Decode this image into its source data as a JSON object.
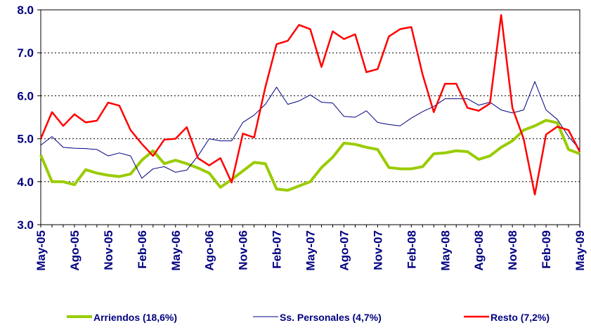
{
  "chart_data": {
    "type": "line",
    "categories": [
      "May-05",
      null,
      null,
      "Ago-05",
      null,
      null,
      "Nov-05",
      null,
      null,
      "Feb-06",
      null,
      null,
      "May-06",
      null,
      null,
      "Ago-06",
      null,
      null,
      "Nov-06",
      null,
      null,
      "Feb-07",
      null,
      null,
      "May-07",
      null,
      null,
      "Ago-07",
      null,
      null,
      "Nov-07",
      null,
      null,
      "Feb-08",
      null,
      null,
      "May-08",
      null,
      null,
      "Ago-08",
      null,
      null,
      "Nov-08",
      null,
      null,
      "Feb-09",
      null,
      null,
      "May-09"
    ],
    "series": [
      {
        "name": "Arriendos (18,6%)",
        "color": "#99cc00",
        "width": 4,
        "values": [
          4.62,
          4.0,
          4.0,
          3.93,
          4.28,
          4.2,
          4.15,
          4.12,
          4.18,
          4.5,
          4.72,
          4.42,
          4.5,
          4.42,
          4.32,
          4.2,
          3.87,
          4.05,
          4.25,
          4.45,
          4.42,
          3.83,
          3.8,
          3.9,
          4.0,
          4.33,
          4.57,
          4.9,
          4.87,
          4.8,
          4.75,
          4.33,
          4.3,
          4.3,
          4.35,
          4.65,
          4.67,
          4.72,
          4.7,
          4.52,
          4.6,
          4.8,
          4.95,
          5.2,
          5.3,
          5.43,
          5.37,
          4.75,
          4.65
        ]
      },
      {
        "name": "Ss. Personales (4,7%)",
        "color": "#000080",
        "width": 1,
        "values": [
          4.85,
          5.05,
          4.8,
          4.78,
          4.77,
          4.75,
          4.6,
          4.67,
          4.6,
          4.08,
          4.3,
          4.35,
          4.22,
          4.27,
          4.6,
          5.0,
          4.95,
          4.95,
          5.38,
          5.55,
          5.8,
          6.2,
          5.8,
          5.88,
          6.02,
          5.85,
          5.83,
          5.52,
          5.5,
          5.65,
          5.38,
          5.33,
          5.3,
          5.48,
          5.63,
          5.75,
          5.93,
          5.93,
          5.93,
          5.78,
          5.85,
          5.67,
          5.6,
          5.67,
          6.33,
          5.67,
          5.45,
          5.05,
          4.75
        ]
      },
      {
        "name": "Resto (7,2%)",
        "color": "#ff0000",
        "width": 2.5,
        "values": [
          5.0,
          5.62,
          5.3,
          5.57,
          5.38,
          5.42,
          5.84,
          5.77,
          5.2,
          4.88,
          4.6,
          4.98,
          5.0,
          5.27,
          4.55,
          4.38,
          4.55,
          3.98,
          5.12,
          5.03,
          6.2,
          7.2,
          7.28,
          7.65,
          7.55,
          6.67,
          7.5,
          7.32,
          7.43,
          6.55,
          6.62,
          7.38,
          7.55,
          7.6,
          6.5,
          5.62,
          6.28,
          6.28,
          5.72,
          5.65,
          5.82,
          7.88,
          5.72,
          5.0,
          3.7,
          5.1,
          5.28,
          5.2,
          4.7
        ]
      }
    ],
    "ylim": [
      3,
      8
    ],
    "yticks": [
      {
        "value": 3,
        "label": "3.0"
      },
      {
        "value": 4,
        "label": "4.0"
      },
      {
        "value": 5,
        "label": "5.0"
      },
      {
        "value": 6,
        "label": "6.0"
      },
      {
        "value": 7,
        "label": "7.0"
      },
      {
        "value": 8,
        "label": "8.0"
      }
    ],
    "grid": true,
    "legend": "bottom"
  }
}
